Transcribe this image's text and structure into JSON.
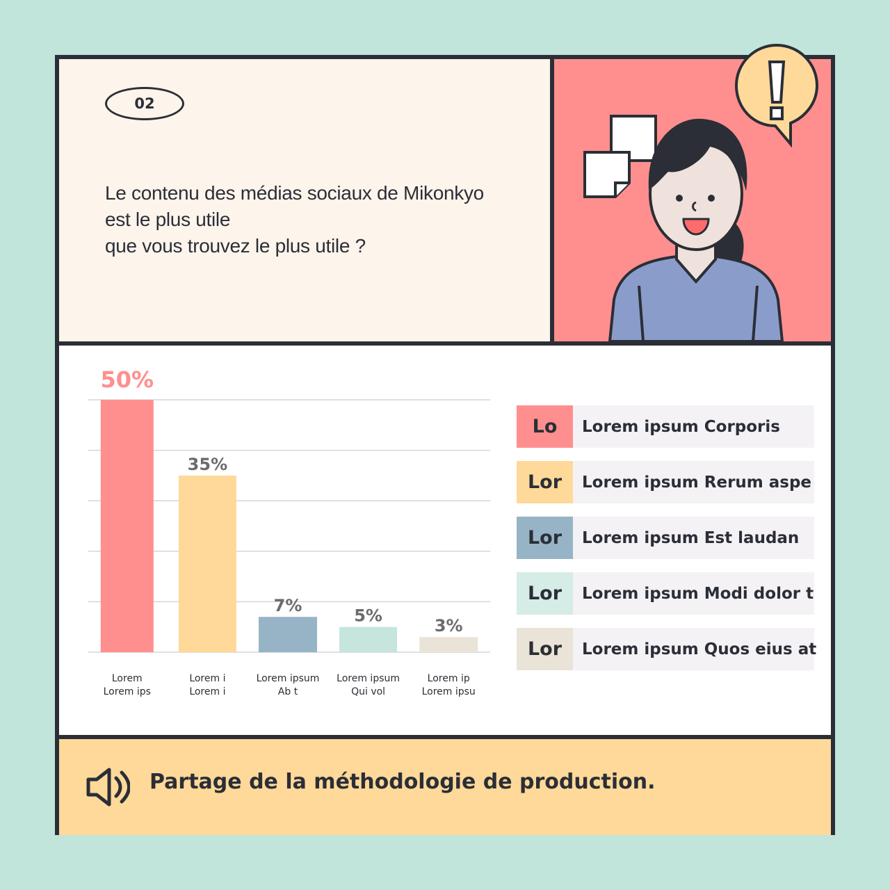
{
  "header": {
    "number": "02",
    "question_lines": [
      "Le contenu des médias sociaux de Mikonkyo",
      "est le plus utile",
      "que vous trouvez le plus utile ?"
    ]
  },
  "colors": {
    "background": "#c1e5da",
    "pink": "#ff8f8f",
    "yellow": "#ffd999",
    "blue": "#97b4c7",
    "mint": "#c6e5dc",
    "beige": "#e9e4d7",
    "ink": "#2b2e36"
  },
  "chart_data": {
    "type": "bar",
    "categories": [
      [
        "Lorem",
        "Lorem ips"
      ],
      [
        "Lorem i",
        "Lorem i"
      ],
      [
        "Lorem ipsum",
        "Ab t"
      ],
      [
        "Lorem ipsum",
        "Qui vol"
      ],
      [
        "Lorem ip",
        "Lorem ipsu"
      ]
    ],
    "values": [
      50,
      35,
      7,
      5,
      3
    ],
    "value_labels": [
      "50%",
      "35%",
      "7%",
      "5%",
      "3%"
    ],
    "colors": [
      "#ff8f8f",
      "#ffd999",
      "#97b4c7",
      "#c6e5dc",
      "#e9e4d7"
    ],
    "ylim": [
      0,
      50
    ],
    "grid": true
  },
  "legend": [
    {
      "short": "Lo",
      "label": "Lorem ipsum Corporis",
      "color": "#ff8f8f"
    },
    {
      "short": "Lor",
      "label": "Lorem ipsum Rerum aspe",
      "color": "#ffd999"
    },
    {
      "short": "Lor",
      "label": "Lorem ipsum Est laudan",
      "color": "#97b4c7"
    },
    {
      "short": "Lor",
      "label": "Lorem ipsum Modi dolor t",
      "color": "#d6ece6"
    },
    {
      "short": "Lor",
      "label": "Lorem ipsum Quos eius at",
      "color": "#e9e4d7"
    }
  ],
  "footer": {
    "icon": "speaker-icon",
    "text": "Partage de la méthodologie de production."
  },
  "illustration": {
    "icons": [
      "alert-speech-bubble-icon",
      "notes-icon",
      "woman-avatar"
    ]
  }
}
